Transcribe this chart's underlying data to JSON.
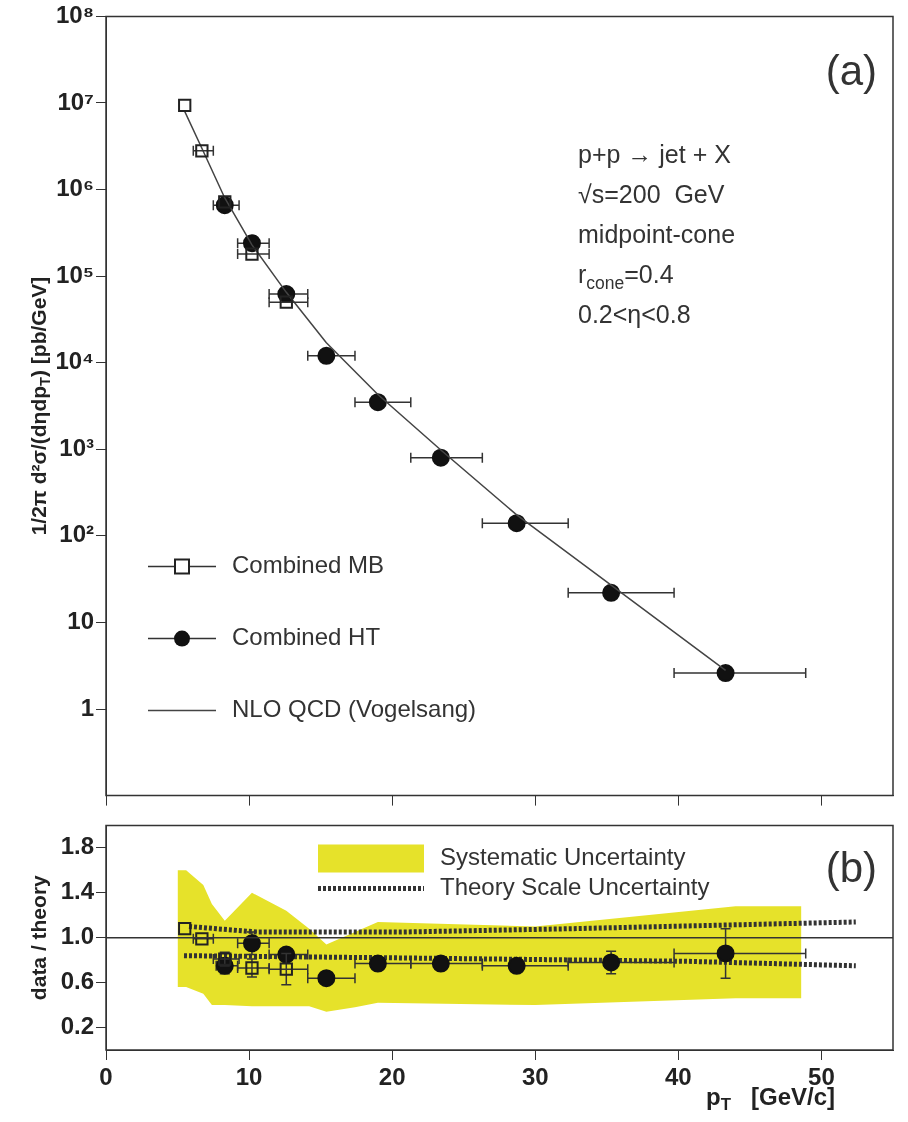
{
  "chart_data": [
    {
      "type": "scatter",
      "ylabel": "1/2π d²σ/(dηdp$_{T}$) [pb/GeV]",
      "log": "y",
      "xlim": [
        0,
        55
      ],
      "xticks": [
        0,
        10,
        20,
        30,
        40,
        50
      ],
      "ylim": [
        0.1,
        100000000
      ],
      "yticks": [
        {
          "value": 100000000,
          "label": "10⁸"
        },
        {
          "value": 10000000,
          "label": "10⁷"
        },
        {
          "value": 1000000,
          "label": "10⁶"
        },
        {
          "value": 100000,
          "label": "10⁵"
        },
        {
          "value": 10000,
          "label": "10⁴"
        },
        {
          "value": 1000,
          "label": "10³"
        },
        {
          "value": 100,
          "label": "10²"
        },
        10,
        1
      ],
      "tick_labels": "y",
      "legend": "bottom left",
      "annotations": [
        "(a)",
        "p+p → jet + X",
        "√s=200  GeV",
        "midpoint-cone",
        "r$_{cone}$=0.4",
        "0.2<η<0.8"
      ],
      "series": [
        {
          "name": "Combined MB",
          "marker": "square",
          "color": "#222222",
          "x": [
            5.5,
            6.7,
            8.3,
            10.2,
            12.6
          ],
          "values": [
            9400000,
            2800000,
            720000,
            180000,
            50000
          ],
          "xerrors": [
            null,
            [
              6.1,
              7.5
            ],
            null,
            [
              9.2,
              11.4
            ],
            [
              11.4,
              14.1
            ]
          ]
        },
        {
          "name": "Combined HT",
          "marker": "circle",
          "color": "#111111",
          "x": [
            8.3,
            10.2,
            12.6,
            15.4,
            19.0,
            23.4,
            28.7,
            35.3,
            43.3
          ],
          "values": [
            660000,
            240000,
            62000,
            12000,
            3500,
            800,
            140,
            22,
            2.6
          ],
          "xerrors": [
            [
              7.5,
              9.3
            ],
            [
              9.2,
              11.4
            ],
            [
              11.4,
              14.1
            ],
            [
              14.1,
              17.4
            ],
            [
              17.4,
              21.3
            ],
            [
              21.3,
              26.3
            ],
            [
              26.3,
              32.3
            ],
            [
              32.3,
              39.7
            ],
            [
              39.7,
              48.9
            ]
          ]
        },
        {
          "name": "NLO QCD (Vogelsang)",
          "type": "line",
          "color": "#444444",
          "x": [
            5.5,
            6.7,
            8.3,
            10.2,
            12.6,
            15.4,
            19,
            23.4,
            28.7,
            35.3,
            43.3
          ],
          "values": [
            8000000,
            3000000,
            800000,
            230000,
            65000,
            17000,
            4300,
            980,
            175,
            27,
            2.8
          ]
        }
      ]
    },
    {
      "type": "scatter",
      "xlabel": "p$_{T}$   [GeV/c]",
      "ylabel": "data / theory",
      "xlim": [
        0,
        55
      ],
      "xticks": [
        0,
        10,
        20,
        30,
        40,
        50
      ],
      "ylim": [
        0,
        2
      ],
      "yticks": [
        0.2,
        0.6,
        {
          "value": 1,
          "label": "1.0"
        },
        1.4,
        1.8
      ],
      "legend": "top",
      "ref_lines": [
        {
          "axis": "y",
          "value": 1,
          "color": "#333333"
        }
      ],
      "annotations": [
        "(b)"
      ],
      "series": [
        {
          "name": "Systematic Uncertainty",
          "type": "area",
          "color": "#e6e22a",
          "x": [
            5,
            5.6,
            6.8,
            7.4,
            8.3,
            10.2,
            12.6,
            14.2,
            15.4,
            17.4,
            19,
            30,
            44,
            48.6
          ],
          "values": [
            null,
            null,
            null,
            null,
            null,
            null,
            null,
            null,
            null,
            null,
            null,
            null,
            null,
            null
          ],
          "lower": [
            0.56,
            0.56,
            0.5,
            0.4,
            0.4,
            0.39,
            0.39,
            0.39,
            0.34,
            0.38,
            0.42,
            0.4,
            0.46,
            0.46
          ],
          "upper": [
            1.6,
            1.6,
            1.47,
            1.3,
            1.15,
            1.4,
            1.24,
            1.08,
            0.94,
            1.05,
            1.14,
            1.1,
            1.28,
            1.28
          ]
        },
        {
          "name": "Theory Scale Uncertainty",
          "type": "line",
          "line_style": "dotted",
          "color": "#333333",
          "x": [
            5.8,
            10.6,
            20.6,
            32.5,
            52.4
          ],
          "values": [
            1.1,
            1.05,
            1.05,
            1.08,
            1.14
          ]
        },
        {
          "type": "line",
          "line_style": "dotted",
          "color": "#333333",
          "x": [
            5.45,
            20.6,
            40.5,
            52.4
          ],
          "values": [
            0.84,
            0.82,
            0.79,
            0.75
          ]
        },
        {
          "marker": "square",
          "color": "#222222",
          "x": [
            5.5,
            6.7,
            8.3,
            10.2,
            12.6
          ],
          "values": [
            1.08,
            0.99,
            0.81,
            0.73,
            0.72
          ],
          "errors": [
            null,
            null,
            0.06,
            0.08,
            0.14
          ],
          "xerrors": [
            null,
            [
              6.1,
              7.5
            ],
            [
              7.5,
              9.3
            ],
            [
              9.2,
              11.4
            ],
            [
              11.4,
              14.1
            ]
          ]
        },
        {
          "marker": "circle",
          "color": "#111111",
          "x": [
            8.3,
            10.2,
            12.6,
            15.4,
            19.0,
            23.4,
            28.7,
            35.3,
            43.3
          ],
          "values": [
            0.75,
            0.95,
            0.85,
            0.64,
            0.77,
            0.77,
            0.75,
            0.78,
            0.86
          ],
          "errors": [
            0.07,
            0.1,
            null,
            null,
            null,
            null,
            null,
            0.1,
            0.22
          ],
          "xerrors": [
            [
              7.7,
              9.2
            ],
            [
              9.2,
              11.4
            ],
            [
              11.4,
              14.1
            ],
            [
              14.1,
              17.4
            ],
            [
              17.4,
              21.3
            ],
            [
              21.3,
              26.3
            ],
            [
              26.3,
              32.3
            ],
            [
              32.3,
              39.7
            ],
            [
              39.7,
              48.9
            ]
          ]
        }
      ]
    }
  ]
}
